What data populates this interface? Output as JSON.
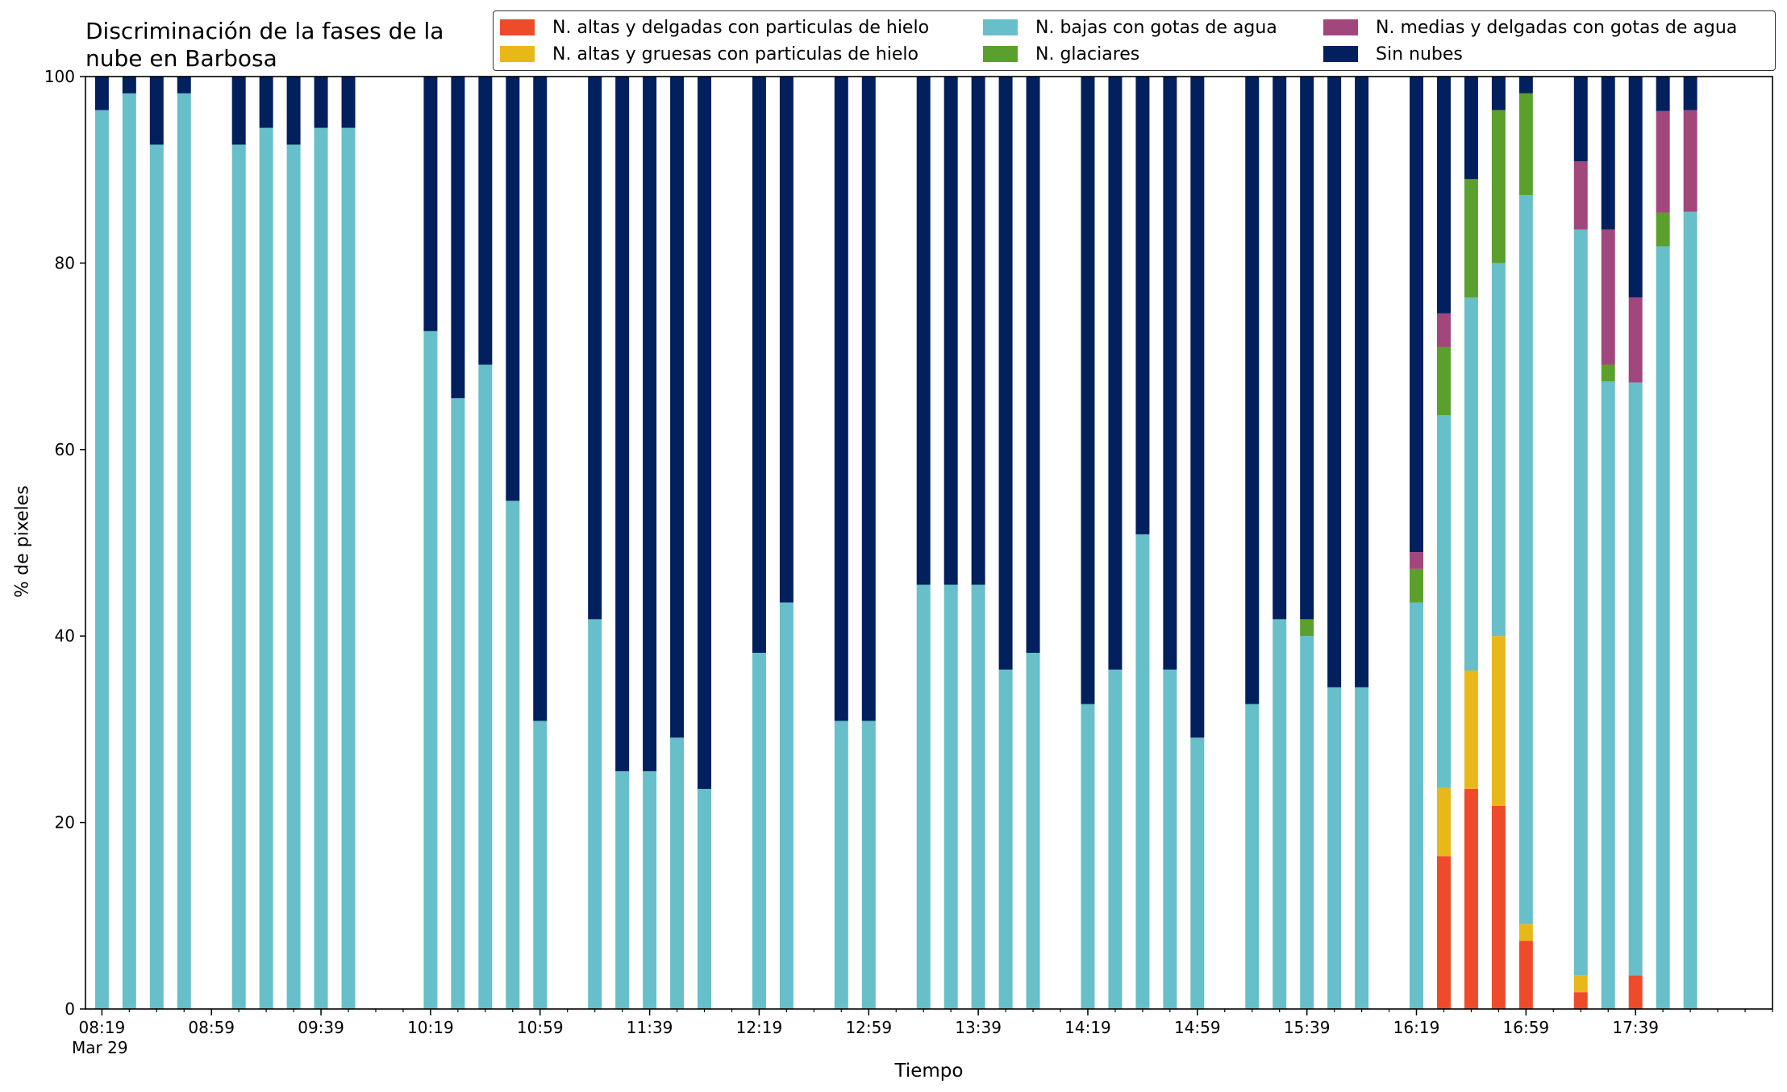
{
  "chart_data": {
    "type": "bar",
    "stacked": true,
    "title": "Discriminación de la fases de la\nnube en Barbosa",
    "xlabel": "Tiempo",
    "ylabel": "% de pixeles",
    "ylim": [
      0,
      100
    ],
    "yticks": [
      0,
      20,
      40,
      60,
      80,
      100
    ],
    "xlim_minutes": [
      -6,
      610
    ],
    "x_ticks": [
      {
        "min": 0,
        "label": "08:19"
      },
      {
        "min": 40,
        "label": "08:59"
      },
      {
        "min": 80,
        "label": "09:39"
      },
      {
        "min": 120,
        "label": "10:19"
      },
      {
        "min": 160,
        "label": "10:59"
      },
      {
        "min": 200,
        "label": "11:39"
      },
      {
        "min": 240,
        "label": "12:19"
      },
      {
        "min": 280,
        "label": "12:59"
      },
      {
        "min": 320,
        "label": "13:39"
      },
      {
        "min": 360,
        "label": "14:19"
      },
      {
        "min": 400,
        "label": "14:59"
      },
      {
        "min": 440,
        "label": "15:39"
      },
      {
        "min": 480,
        "label": "16:19"
      },
      {
        "min": 520,
        "label": "16:59"
      },
      {
        "min": 560,
        "label": "17:39"
      }
    ],
    "x_sub_label": "Mar 29",
    "minor_tick_every": 10,
    "bar_width_minutes": 5,
    "series": [
      {
        "name": "N. altas y delgadas con particulas de hielo",
        "color": "#ee4b2b"
      },
      {
        "name": "N. altas y gruesas con particulas de hielo",
        "color": "#e8b81a"
      },
      {
        "name": "N. bajas con gotas de agua",
        "color": "#67bfc9"
      },
      {
        "name": "N. glaciares",
        "color": "#5b9f2d"
      },
      {
        "name": "N. medias y delgadas con gotas de agua",
        "color": "#a2477c"
      },
      {
        "name": "Sin nubes",
        "color": "#021f5e"
      }
    ],
    "x_labels": [
      "08:19",
      "08:29",
      "08:39",
      "08:49",
      "09:09",
      "09:19",
      "09:29",
      "09:39",
      "09:49",
      "10:19",
      "10:29",
      "10:39",
      "10:49",
      "10:59",
      "11:19",
      "11:29",
      "11:39",
      "11:49",
      "11:59",
      "12:19",
      "12:29",
      "12:49",
      "12:59",
      "13:19",
      "13:29",
      "13:39",
      "13:49",
      "13:59",
      "14:19",
      "14:29",
      "14:39",
      "14:49",
      "14:59",
      "15:19",
      "15:29",
      "15:39",
      "15:49",
      "15:59",
      "16:19",
      "16:29",
      "16:39",
      "16:49",
      "16:59",
      "17:19",
      "17:29",
      "17:39",
      "17:49",
      "17:59"
    ],
    "bars": [
      {
        "t": 0,
        "values": [
          0,
          0,
          96.4,
          0,
          0,
          3.6
        ]
      },
      {
        "t": 10,
        "values": [
          0,
          0,
          98.2,
          0,
          0,
          1.8
        ]
      },
      {
        "t": 20,
        "values": [
          0,
          0,
          92.7,
          0,
          0,
          7.3
        ]
      },
      {
        "t": 30,
        "values": [
          0,
          0,
          98.2,
          0,
          0,
          1.8
        ]
      },
      {
        "t": 50,
        "values": [
          0,
          0,
          92.7,
          0,
          0,
          7.3
        ]
      },
      {
        "t": 60,
        "values": [
          0,
          0,
          94.5,
          0,
          0,
          5.5
        ]
      },
      {
        "t": 70,
        "values": [
          0,
          0,
          92.7,
          0,
          0,
          7.3
        ]
      },
      {
        "t": 80,
        "values": [
          0,
          0,
          94.5,
          0,
          0,
          5.5
        ]
      },
      {
        "t": 90,
        "values": [
          0,
          0,
          94.5,
          0,
          0,
          5.5
        ]
      },
      {
        "t": 120,
        "values": [
          0,
          0,
          72.7,
          0,
          0,
          27.3
        ]
      },
      {
        "t": 130,
        "values": [
          0,
          0,
          65.5,
          0,
          0,
          34.5
        ]
      },
      {
        "t": 140,
        "values": [
          0,
          0,
          69.1,
          0,
          0,
          30.9
        ]
      },
      {
        "t": 150,
        "values": [
          0,
          0,
          54.5,
          0,
          0,
          45.5
        ]
      },
      {
        "t": 160,
        "values": [
          0,
          0,
          30.9,
          0,
          0,
          69.1
        ]
      },
      {
        "t": 180,
        "values": [
          0,
          0,
          41.8,
          0,
          0,
          58.2
        ]
      },
      {
        "t": 190,
        "values": [
          0,
          0,
          25.5,
          0,
          0,
          74.5
        ]
      },
      {
        "t": 200,
        "values": [
          0,
          0,
          25.5,
          0,
          0,
          74.5
        ]
      },
      {
        "t": 210,
        "values": [
          0,
          0,
          29.1,
          0,
          0,
          70.9
        ]
      },
      {
        "t": 220,
        "values": [
          0,
          0,
          23.6,
          0,
          0,
          76.4
        ]
      },
      {
        "t": 240,
        "values": [
          0,
          0,
          38.2,
          0,
          0,
          61.8
        ]
      },
      {
        "t": 250,
        "values": [
          0,
          0,
          43.6,
          0,
          0,
          56.4
        ]
      },
      {
        "t": 270,
        "values": [
          0,
          0,
          30.9,
          0,
          0,
          69.1
        ]
      },
      {
        "t": 280,
        "values": [
          0,
          0,
          30.9,
          0,
          0,
          69.1
        ]
      },
      {
        "t": 300,
        "values": [
          0,
          0,
          45.5,
          0,
          0,
          54.5
        ]
      },
      {
        "t": 310,
        "values": [
          0,
          0,
          45.5,
          0,
          0,
          54.5
        ]
      },
      {
        "t": 320,
        "values": [
          0,
          0,
          45.5,
          0,
          0,
          54.5
        ]
      },
      {
        "t": 330,
        "values": [
          0,
          0,
          36.4,
          0,
          0,
          63.6
        ]
      },
      {
        "t": 340,
        "values": [
          0,
          0,
          38.2,
          0,
          0,
          61.8
        ]
      },
      {
        "t": 360,
        "values": [
          0,
          0,
          32.7,
          0,
          0,
          67.3
        ]
      },
      {
        "t": 370,
        "values": [
          0,
          0,
          36.4,
          0,
          0,
          63.6
        ]
      },
      {
        "t": 380,
        "values": [
          0,
          0,
          50.9,
          0,
          0,
          49.1
        ]
      },
      {
        "t": 390,
        "values": [
          0,
          0,
          36.4,
          0,
          0,
          63.6
        ]
      },
      {
        "t": 400,
        "values": [
          0,
          0,
          29.1,
          0,
          0,
          70.9
        ]
      },
      {
        "t": 420,
        "values": [
          0,
          0,
          32.7,
          0,
          0,
          67.3
        ]
      },
      {
        "t": 430,
        "values": [
          0,
          0,
          41.8,
          0,
          0,
          58.2
        ]
      },
      {
        "t": 440,
        "values": [
          0,
          0,
          40.0,
          1.8,
          0,
          58.2
        ]
      },
      {
        "t": 450,
        "values": [
          0,
          0,
          34.5,
          0,
          0,
          65.5
        ]
      },
      {
        "t": 460,
        "values": [
          0,
          0,
          34.5,
          0,
          0,
          65.5
        ]
      },
      {
        "t": 480,
        "values": [
          0,
          0,
          43.6,
          3.6,
          1.8,
          51.0
        ]
      },
      {
        "t": 490,
        "values": [
          16.4,
          7.3,
          40.0,
          7.3,
          3.6,
          25.4
        ]
      },
      {
        "t": 500,
        "values": [
          23.6,
          12.7,
          40.0,
          12.7,
          0,
          11.0
        ]
      },
      {
        "t": 510,
        "values": [
          21.8,
          18.2,
          40.0,
          16.4,
          0,
          3.6
        ]
      },
      {
        "t": 520,
        "values": [
          7.3,
          1.8,
          78.2,
          10.9,
          0,
          1.8
        ]
      },
      {
        "t": 540,
        "values": [
          1.8,
          1.8,
          80.0,
          0,
          7.3,
          9.1
        ]
      },
      {
        "t": 550,
        "values": [
          0,
          0,
          67.3,
          1.8,
          14.5,
          16.4
        ]
      },
      {
        "t": 560,
        "values": [
          3.6,
          0,
          63.6,
          0,
          9.1,
          23.7
        ]
      },
      {
        "t": 570,
        "values": [
          0,
          0,
          81.8,
          3.6,
          10.9,
          3.7
        ]
      },
      {
        "t": 580,
        "values": [
          0,
          0,
          85.5,
          0,
          10.9,
          3.6
        ]
      }
    ]
  }
}
